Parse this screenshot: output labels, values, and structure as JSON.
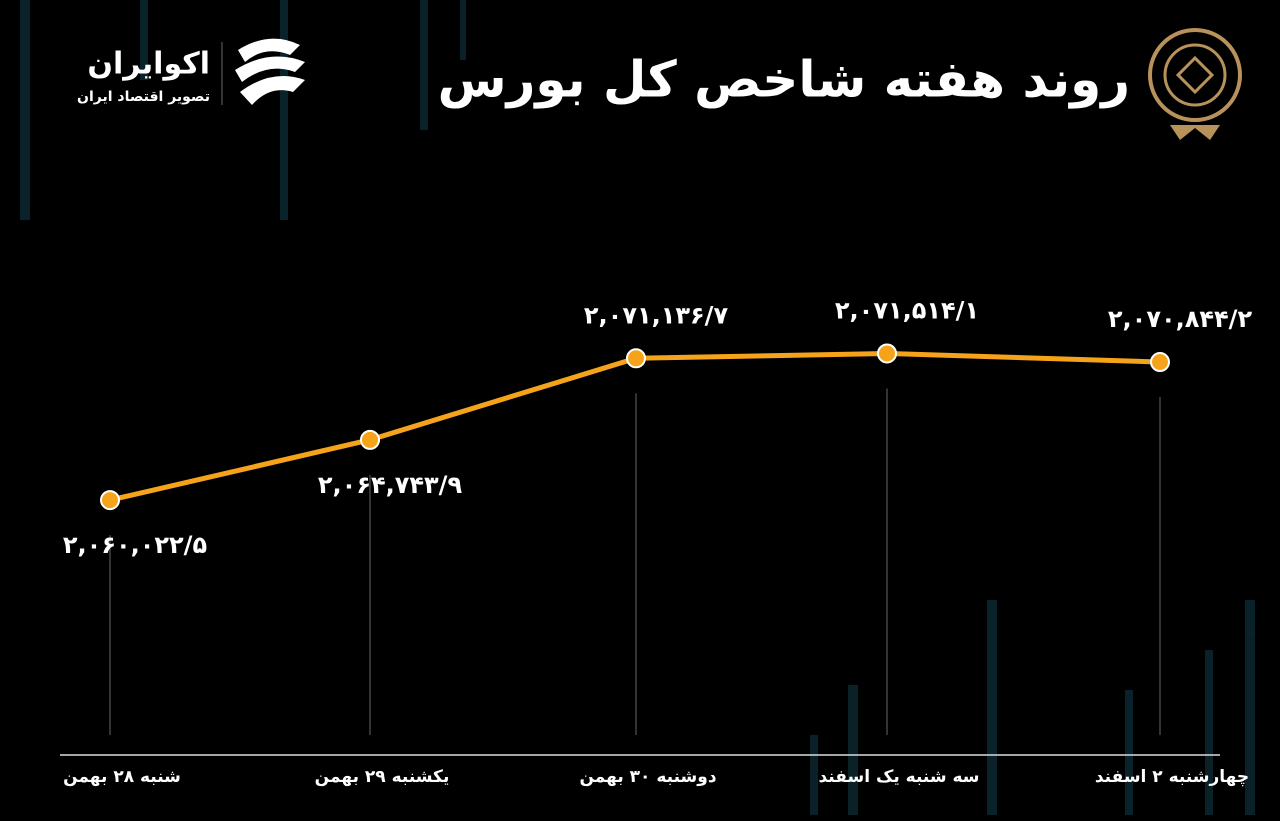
{
  "chart_data": {
    "type": "line",
    "title": "روند هفته شاخص کل بورس",
    "brand": {
      "name": "اکوایران",
      "tagline": "تصویر اقتصاد ایران"
    },
    "categories": [
      "شنبه ۲۸ بهمن",
      "یکشنبه ۲۹ بهمن",
      "دوشنبه ۳۰ بهمن",
      "سه شنبه یک اسفند",
      "چهارشنبه ۲ اسفند"
    ],
    "values": [
      2060022.5,
      2064743.9,
      2071136.7,
      2071514.1,
      2070844.2
    ],
    "value_labels": [
      "۲,۰۶۰,۰۲۲/۵",
      "۲,۰۶۴,۷۴۳/۹",
      "۲,۰۷۱,۱۳۶/۷",
      "۲,۰۷۱,۵۱۴/۱",
      "۲,۰۷۰,۸۴۴/۲"
    ],
    "color": "#f5a31a",
    "ylim": [
      2050000,
      2075000
    ]
  }
}
